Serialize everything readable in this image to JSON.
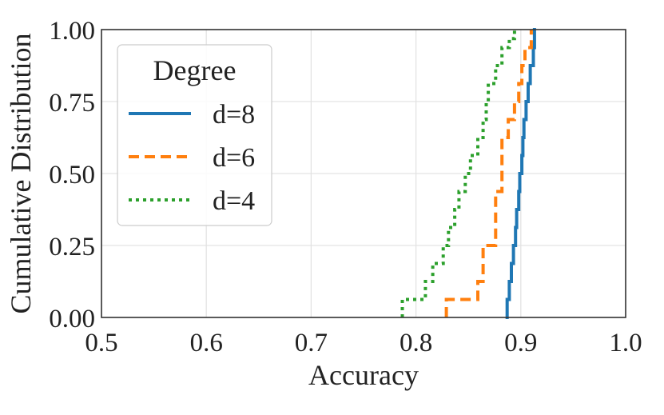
{
  "chart_data": {
    "type": "line",
    "step": true,
    "xlabel": "Accuracy",
    "ylabel": "Cumulative Distribution",
    "xlim": [
      0.5,
      1.0
    ],
    "ylim": [
      0.0,
      1.0
    ],
    "xticks": [
      "0.5",
      "0.6",
      "0.7",
      "0.8",
      "0.9",
      "1.0"
    ],
    "yticks": [
      "0.00",
      "0.25",
      "0.50",
      "0.75",
      "1.00"
    ],
    "grid": true,
    "legend": {
      "title": "Degree",
      "placement": "top-left"
    },
    "series": [
      {
        "name": "d=8",
        "color": "#1f77b4",
        "dash": "solid",
        "x": [
          0.887,
          0.889,
          0.891,
          0.893,
          0.895,
          0.896,
          0.898,
          0.899,
          0.901,
          0.902,
          0.903,
          0.905,
          0.907,
          0.909,
          0.912,
          0.913
        ],
        "y": [
          0.0625,
          0.125,
          0.1875,
          0.25,
          0.3125,
          0.375,
          0.4375,
          0.5,
          0.5625,
          0.625,
          0.6875,
          0.75,
          0.8125,
          0.875,
          0.9375,
          1.0
        ]
      },
      {
        "name": "d=6",
        "color": "#ff7f0e",
        "dash": "dashed",
        "x": [
          0.829,
          0.859,
          0.864,
          0.876,
          0.882,
          0.888,
          0.894,
          0.898,
          0.901,
          0.904,
          0.91
        ],
        "y": [
          0.0625,
          0.125,
          0.25,
          0.4375,
          0.625,
          0.6875,
          0.75,
          0.8125,
          0.875,
          0.9375,
          1.0
        ]
      },
      {
        "name": "d=4",
        "color": "#2ca02c",
        "dash": "dotted",
        "x": [
          0.787,
          0.809,
          0.816,
          0.826,
          0.831,
          0.837,
          0.841,
          0.847,
          0.852,
          0.859,
          0.864,
          0.867,
          0.869,
          0.876,
          0.882,
          0.889,
          0.894
        ],
        "y": [
          0.0625,
          0.125,
          0.1875,
          0.25,
          0.3125,
          0.375,
          0.4375,
          0.5,
          0.5625,
          0.625,
          0.6875,
          0.75,
          0.8125,
          0.875,
          0.9375,
          0.9688,
          1.0
        ]
      }
    ]
  }
}
